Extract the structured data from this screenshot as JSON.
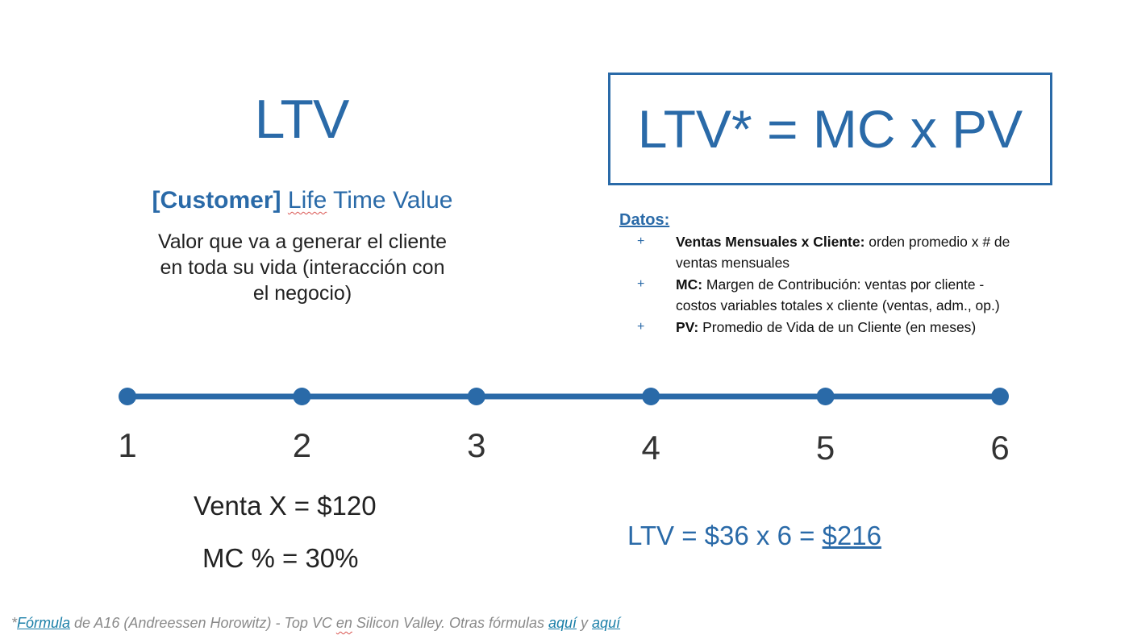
{
  "left": {
    "title": "LTV",
    "subtitle_bracket": "[Customer]",
    "subtitle_life": "Life",
    "subtitle_rest": " Time Value",
    "definition_line1": "Valor que va a generar el cliente",
    "definition_line2": "en toda su vida (interacción con",
    "definition_line3": "el negocio)"
  },
  "formula": {
    "text": "LTV* = MC x PV"
  },
  "datos": {
    "title": "Datos:",
    "bullet": "+",
    "items": [
      {
        "term": "Ventas Mensuales x Cliente:",
        "line1": " orden promedio x # de",
        "line2": "ventas mensuales"
      },
      {
        "term": "MC:",
        "line1": " Margen de Contribución: ventas por cliente -",
        "line2": "costos variables totales x cliente (ventas, adm., op.)"
      },
      {
        "term": "PV:",
        "line1": " Promedio de Vida de un Cliente (en meses)",
        "line2": ""
      }
    ]
  },
  "timeline": {
    "points": [
      "1",
      "2",
      "3",
      "4",
      "5",
      "6"
    ],
    "color": "#2a6aa8"
  },
  "calc": {
    "venta": "Venta X = $120",
    "mc": "MC % = 30%"
  },
  "result": {
    "prefix": "LTV = $36 x 6 = ",
    "total": "$216"
  },
  "footnote": {
    "star": "*",
    "formula_link": "Fórmula",
    "middle": " de A16 (Andreessen Horowitz) - Top VC ",
    "en": "en",
    "rest": " Silicon Valley. Otras fórmulas ",
    "link1": "aquí",
    "y": " y ",
    "link2": "aquí"
  }
}
